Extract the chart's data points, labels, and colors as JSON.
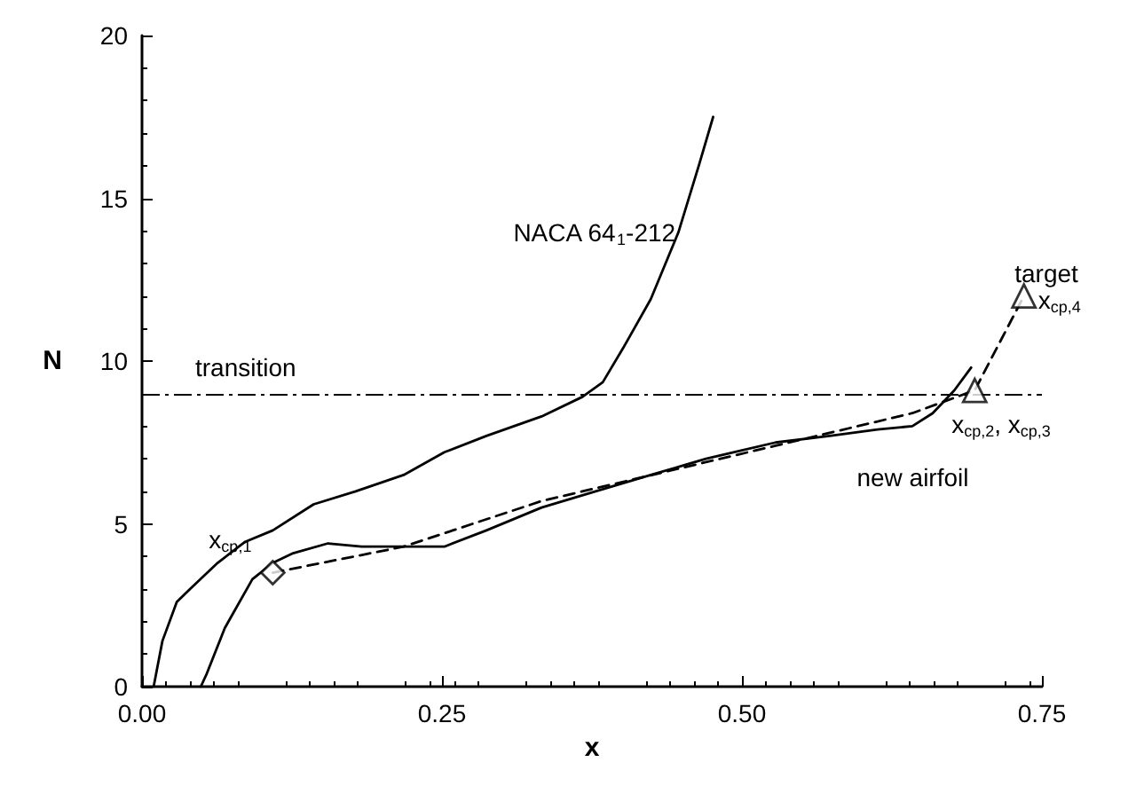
{
  "chart_data": {
    "type": "line",
    "xlabel": "x",
    "ylabel": "N",
    "xlim": [
      0,
      0.75
    ],
    "ylim": [
      0,
      20
    ],
    "xticks": [
      {
        "value": 0,
        "label": "0.00"
      },
      0.25,
      {
        "value": 0.5,
        "label": "0.50"
      },
      0.75
    ],
    "yticks": [
      0,
      5,
      10,
      15,
      20
    ],
    "grid": false,
    "legend": false,
    "marker": "none",
    "series": [
      {
        "color": "#000000",
        "line_style": "solid",
        "x": [
          0.0097,
          0.017,
          0.029,
          0.04,
          0.063,
          0.086,
          0.109,
          0.143,
          0.178,
          0.218,
          0.252,
          0.287,
          0.333,
          0.367,
          0.384,
          0.401,
          0.424,
          0.447,
          0.464,
          0.476
        ],
        "values": [
          0,
          1.4,
          2.6,
          3.0,
          3.8,
          4.45,
          4.8,
          5.6,
          6.0,
          6.5,
          7.2,
          7.7,
          8.3,
          8.9,
          9.35,
          10.4,
          11.9,
          13.95,
          16.0,
          17.5
        ]
      },
      {
        "color": "#000000",
        "line_style": "solid",
        "x": [
          0.049,
          0.054,
          0.069,
          0.092,
          0.109,
          0.126,
          0.155,
          0.183,
          0.218,
          0.252,
          0.287,
          0.333,
          0.378,
          0.424,
          0.47,
          0.528,
          0.573,
          0.613,
          0.642,
          0.659,
          0.677,
          0.691
        ],
        "values": [
          0,
          0.4,
          1.8,
          3.3,
          3.8,
          4.1,
          4.4,
          4.3,
          4.3,
          4.3,
          4.8,
          5.5,
          6.0,
          6.5,
          7.0,
          7.5,
          7.7,
          7.9,
          8.0,
          8.4,
          9.1,
          9.8
        ]
      },
      {
        "color": "#000000",
        "line_style": "dashed",
        "x": [
          0.109,
          0.218,
          0.333,
          0.528,
          0.642,
          0.694,
          0.735
        ],
        "values": [
          3.5,
          4.3,
          5.7,
          7.4,
          8.4,
          9.1,
          12.0
        ]
      },
      {
        "type": "scatter",
        "marker": "diamond",
        "color": "#000000",
        "x": [
          0.109
        ],
        "values": [
          3.5
        ]
      },
      {
        "type": "scatter",
        "marker": "triangle",
        "color": "#000000",
        "x": [
          0.694
        ],
        "values": [
          9.1
        ]
      },
      {
        "type": "scatter",
        "marker": "triangle",
        "color": "#000000",
        "x": [
          0.735
        ],
        "values": [
          12.0
        ]
      }
    ],
    "ref_lines": [
      {
        "axis": "y",
        "value": 9,
        "label": "transition",
        "line_style": "dashdot",
        "color": "#000000"
      }
    ],
    "annotations": [
      "NACA 64$_{1}$-212",
      "new airfoil",
      "target",
      {
        "text": "x$_{cp,1}$",
        "x": 0.109,
        "y": 3.5
      },
      {
        "text": "x$_{cp,2}$, x$_{cp,3}$",
        "x": 0.694,
        "y": 9.1
      },
      {
        "text": "x$_{cp,4}$",
        "x": 0.735,
        "y": 12.0
      }
    ]
  }
}
